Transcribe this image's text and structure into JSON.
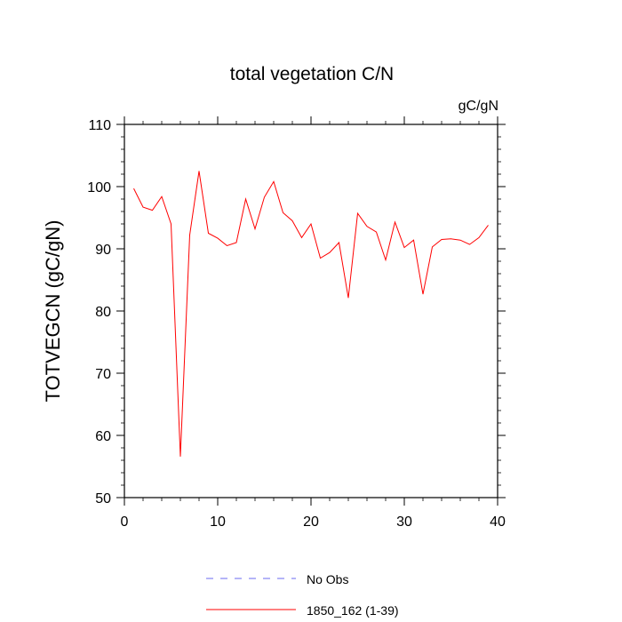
{
  "chart_data": {
    "type": "line",
    "title": "total vegetation C/N",
    "units_label": "gC/gN",
    "ylabel": "TOTVEGCN  (gC/gN)",
    "xlabel": "",
    "xlim": [
      0,
      40
    ],
    "ylim": [
      50,
      110
    ],
    "x_ticks": [
      0,
      10,
      20,
      30,
      40
    ],
    "y_ticks": [
      50,
      60,
      70,
      80,
      90,
      100,
      110
    ],
    "grid": false,
    "legend_position": "bottom",
    "series": [
      {
        "name": "No Obs",
        "color": "#6b6bf0",
        "dashed": true,
        "values": []
      },
      {
        "name": "1850_162 (1-39)",
        "color": "#ff0000",
        "dashed": false,
        "x": [
          1,
          2,
          3,
          4,
          5,
          6,
          7,
          8,
          9,
          10,
          11,
          12,
          13,
          14,
          15,
          16,
          17,
          18,
          19,
          20,
          21,
          22,
          23,
          24,
          25,
          26,
          27,
          28,
          29,
          30,
          31,
          32,
          33,
          34,
          35,
          36,
          37,
          38,
          39
        ],
        "values": [
          99.7,
          96.7,
          96.2,
          98.4,
          94.0,
          56.6,
          92.2,
          102.5,
          92.5,
          91.7,
          90.5,
          91.0,
          98.0,
          93.2,
          98.3,
          100.8,
          95.8,
          94.5,
          91.8,
          94.0,
          88.5,
          89.4,
          91.0,
          82.1,
          95.7,
          93.6,
          92.7,
          88.2,
          94.3,
          90.2,
          91.4,
          82.7,
          90.3,
          91.5,
          91.6,
          91.4,
          90.7,
          91.8,
          93.8
        ]
      }
    ]
  }
}
